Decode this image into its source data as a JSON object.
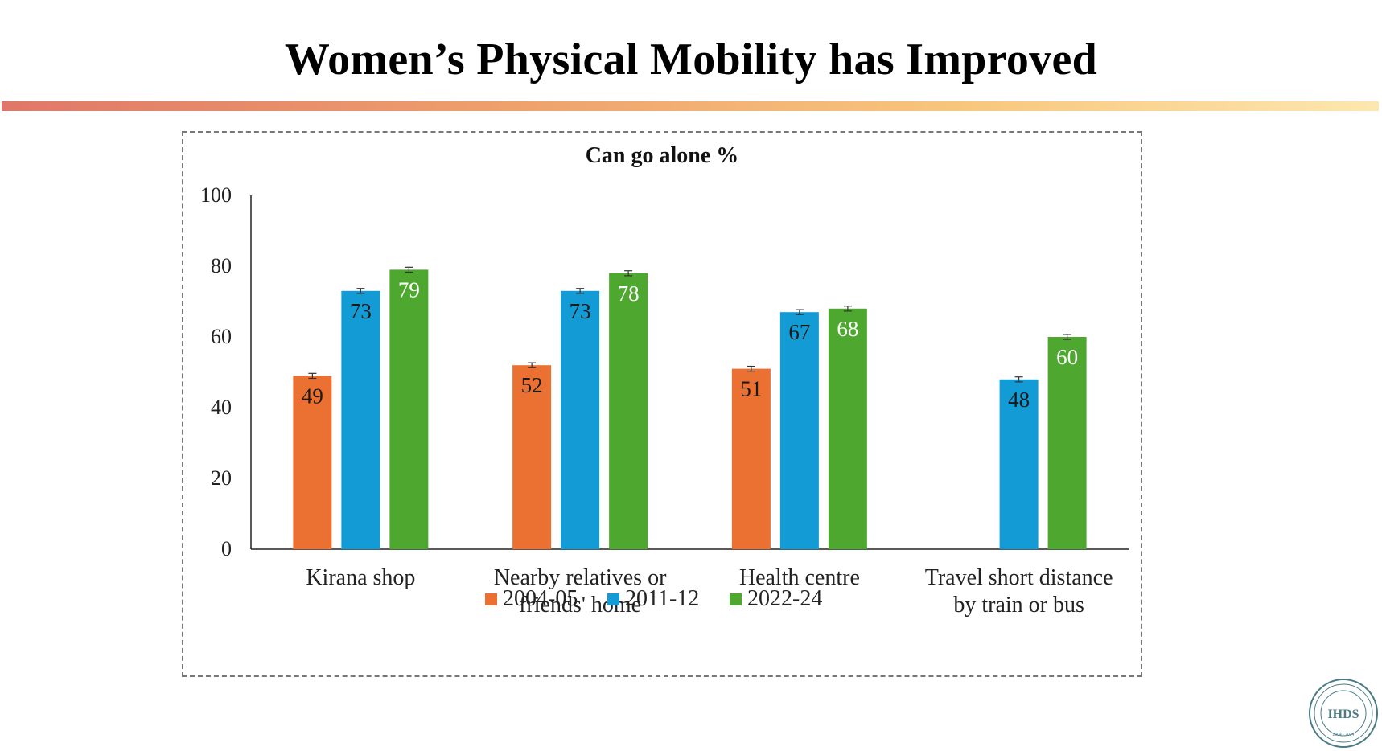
{
  "slide": {
    "title": "Women’s Physical Mobility has Improved",
    "accent_gradient": [
      "#e0776a",
      "#ee9e6c",
      "#f7c77d",
      "#fde7b0"
    ]
  },
  "logo": {
    "text": "IHDS",
    "ring_text": "INDIA HUMAN DEVELOPMENT SURVEY",
    "years": "2004 - 2024",
    "color": "#4a7a86"
  },
  "chart_data": {
    "type": "bar",
    "title": "Can go alone %",
    "categories": [
      [
        "Kirana shop"
      ],
      [
        "Nearby relatives or",
        "friends' home"
      ],
      [
        "Health centre"
      ],
      [
        "Travel short distance",
        "by train or bus"
      ]
    ],
    "series": [
      {
        "name": "2004-05",
        "color": "#ea7132",
        "values": [
          49,
          52,
          51,
          null
        ],
        "label_color": "#1a1a1a"
      },
      {
        "name": "2011-12",
        "color": "#139bd5",
        "values": [
          73,
          73,
          67,
          48
        ],
        "label_color": "#1a1a1a"
      },
      {
        "name": "2022-24",
        "color": "#4ea72e",
        "values": [
          79,
          78,
          68,
          60
        ],
        "label_color": "#ffffff"
      }
    ],
    "error_bar": 0.7,
    "ylim": [
      0,
      100
    ],
    "yticks": [
      0,
      20,
      40,
      60,
      80,
      100
    ],
    "xlabel": "",
    "ylabel": "",
    "grid": false,
    "legend": "bottom-center"
  }
}
